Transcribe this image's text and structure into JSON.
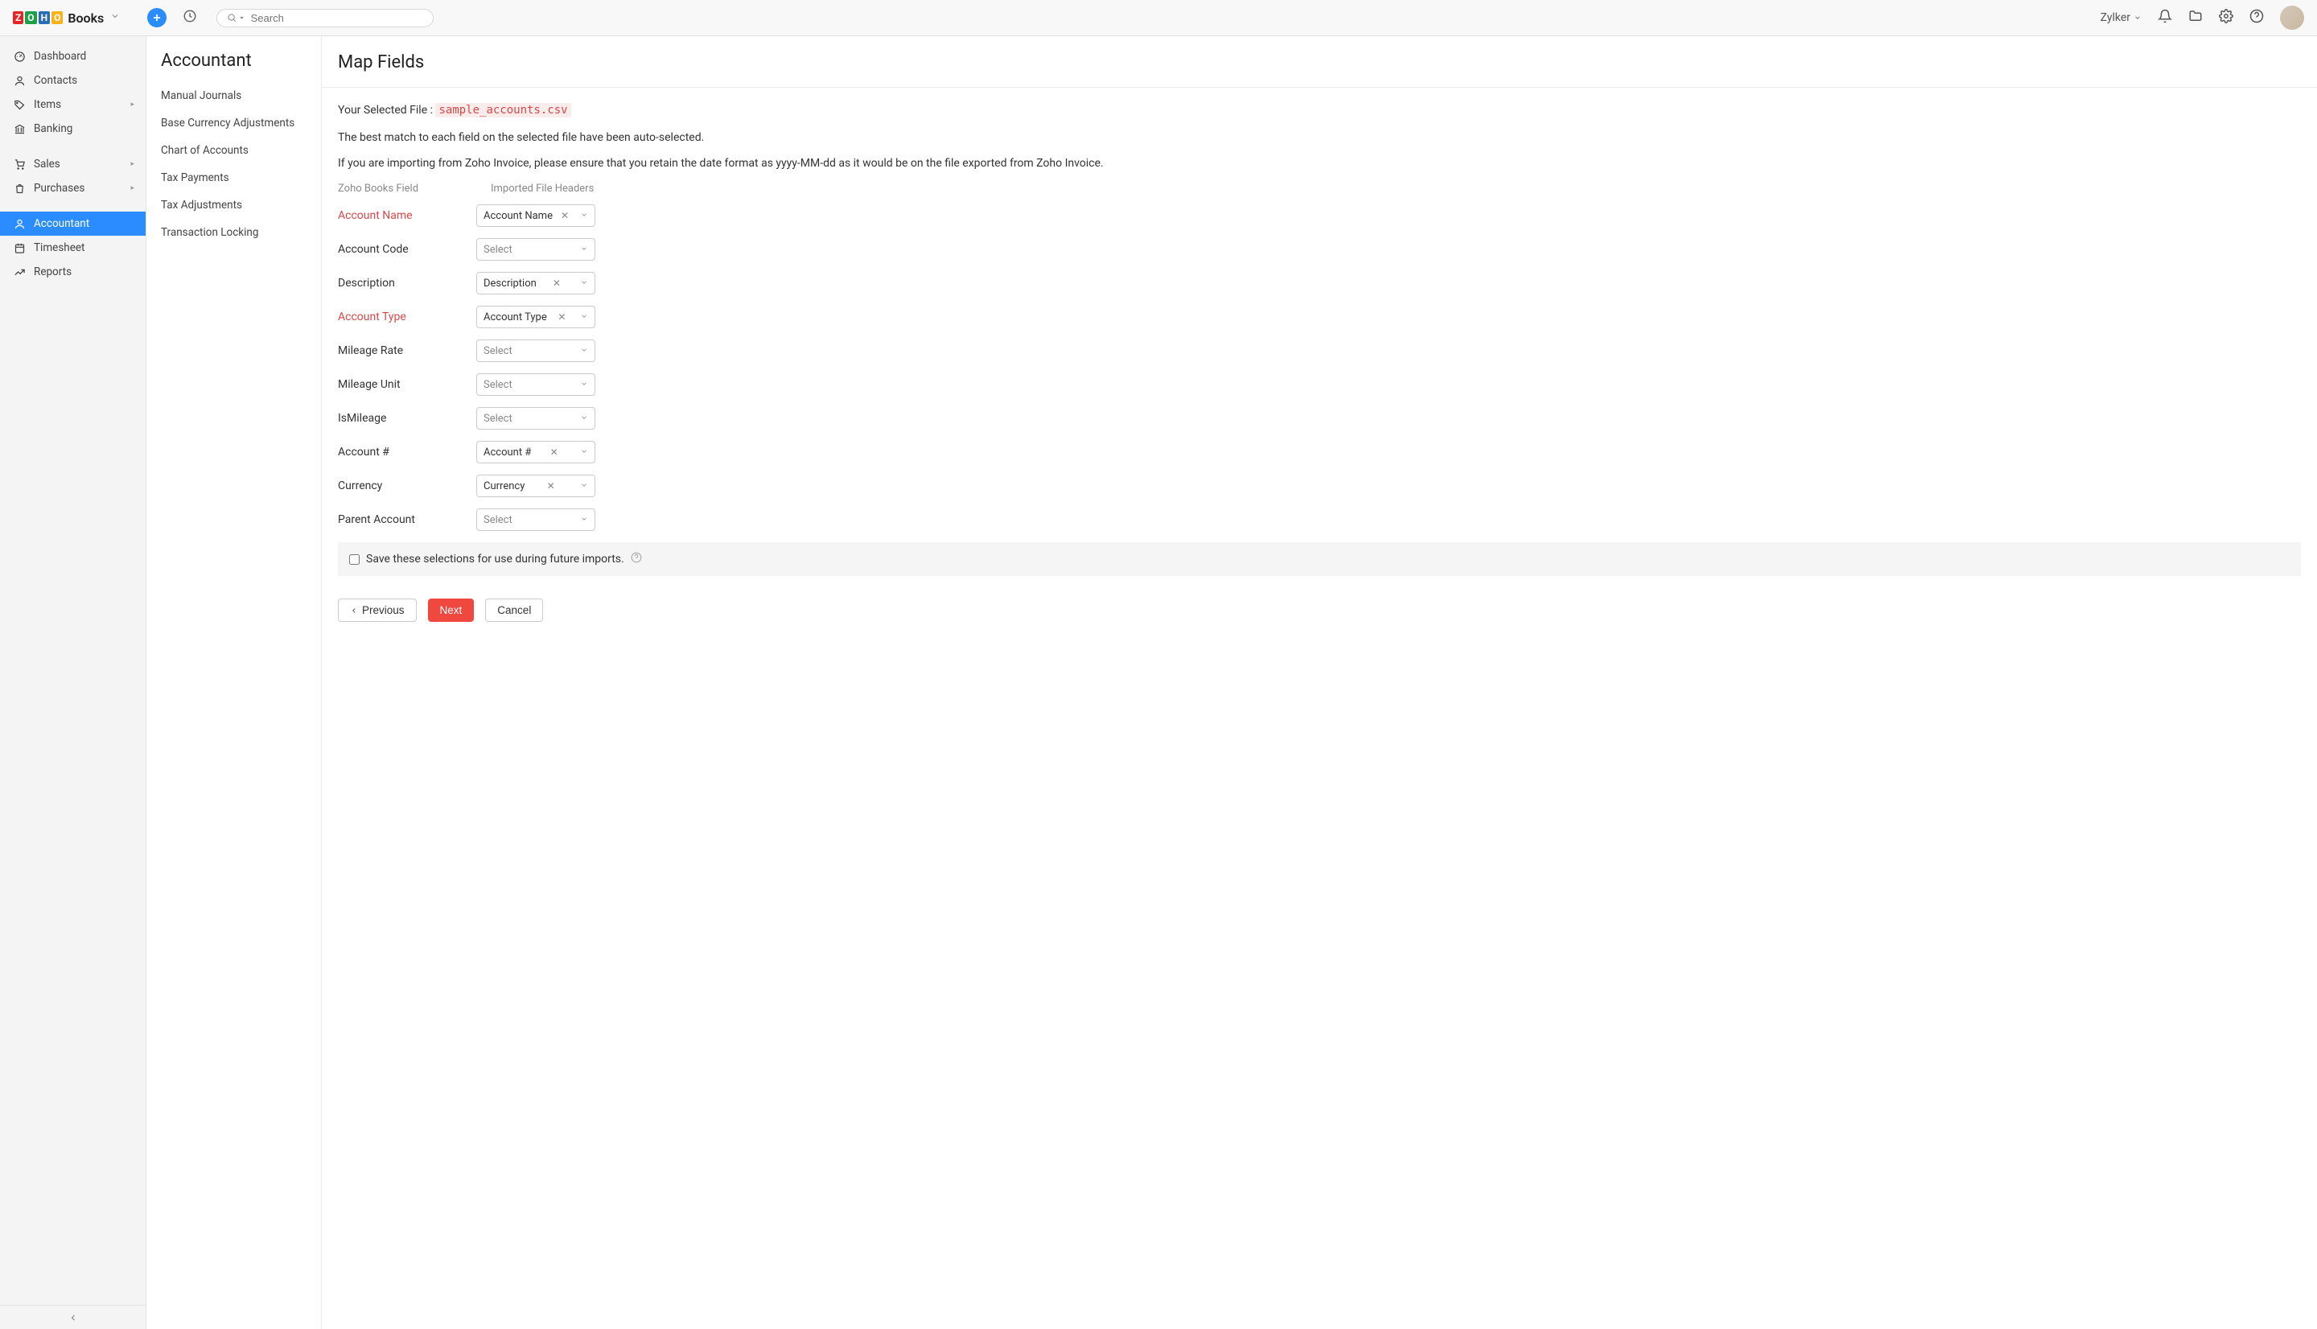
{
  "topbar": {
    "logo_text": "Books",
    "search_placeholder": "Search",
    "org_name": "Zylker"
  },
  "sidebar": {
    "items": [
      {
        "label": "Dashboard",
        "icon": "dashboard",
        "arrow": false
      },
      {
        "label": "Contacts",
        "icon": "person",
        "arrow": false
      },
      {
        "label": "Items",
        "icon": "tag",
        "arrow": true
      },
      {
        "label": "Banking",
        "icon": "bank",
        "arrow": false
      },
      {
        "label": "Sales",
        "icon": "cart",
        "arrow": true,
        "divider_before": true
      },
      {
        "label": "Purchases",
        "icon": "bag",
        "arrow": true
      },
      {
        "label": "Accountant",
        "icon": "accountant",
        "arrow": false,
        "active": true,
        "divider_before": true
      },
      {
        "label": "Timesheet",
        "icon": "timesheet",
        "arrow": false
      },
      {
        "label": "Reports",
        "icon": "reports",
        "arrow": false
      }
    ]
  },
  "subnav": {
    "title": "Accountant",
    "items": [
      "Manual Journals",
      "Base Currency Adjustments",
      "Chart of Accounts",
      "Tax Payments",
      "Tax Adjustments",
      "Transaction Locking"
    ]
  },
  "main": {
    "title": "Map Fields",
    "file_label": "Your Selected File : ",
    "file_name": "sample_accounts.csv",
    "note1": "The best match to each field on the selected file have been auto-selected.",
    "note2": "If you are importing from Zoho Invoice, please ensure that you retain the date format as yyyy-MM-dd as it would be on the file exported from Zoho Invoice.",
    "col1_header": "Zoho Books Field",
    "col2_header": "Imported File Headers",
    "rows": [
      {
        "label": "Account Name",
        "required": true,
        "value": "Account Name"
      },
      {
        "label": "Account Code",
        "required": false,
        "value": ""
      },
      {
        "label": "Description",
        "required": false,
        "value": "Description"
      },
      {
        "label": "Account Type",
        "required": true,
        "value": "Account Type"
      },
      {
        "label": "Mileage Rate",
        "required": false,
        "value": ""
      },
      {
        "label": "Mileage Unit",
        "required": false,
        "value": ""
      },
      {
        "label": "IsMileage",
        "required": false,
        "value": ""
      },
      {
        "label": "Account #",
        "required": false,
        "value": "Account #"
      },
      {
        "label": "Currency",
        "required": false,
        "value": "Currency"
      },
      {
        "label": "Parent Account",
        "required": false,
        "value": ""
      }
    ],
    "select_placeholder": "Select",
    "save_checkbox_label": "Save these selections for use during future imports.",
    "buttons": {
      "previous": "Previous",
      "next": "Next",
      "cancel": "Cancel"
    }
  }
}
